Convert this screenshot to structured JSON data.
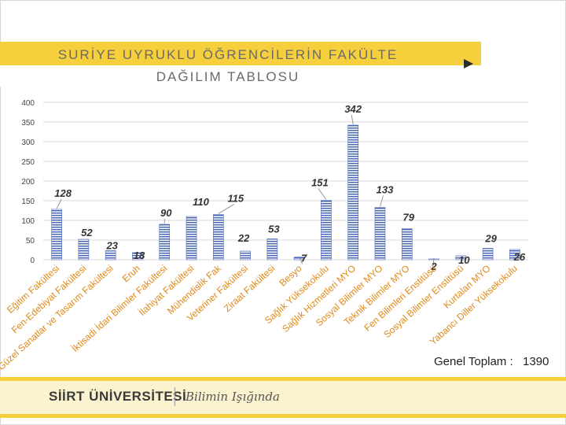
{
  "title": {
    "line1": "SURİYE UYRUKLU ÖĞRENCİLERİN FAKÜLTE",
    "line2": "DAĞILIM TABLOSU"
  },
  "footer": {
    "university": "SİİRT ÜNİVERSİTESİ",
    "slogan": "Bilimin Işığında",
    "total_label": "Genel Toplam :",
    "total_value": "1390"
  },
  "icons": {
    "arrow": "play-arrow-icon"
  },
  "colors": {
    "banner": "#f6cf3d",
    "bar": "#4a67b5",
    "title_text": "#6a6a6a"
  },
  "chart_data": {
    "type": "bar",
    "ylim": [
      0,
      400
    ],
    "yticks": [
      0,
      50,
      100,
      150,
      200,
      250,
      300,
      350,
      400
    ],
    "grid": true,
    "categories": [
      "Eğitim Fakültesi",
      "Fen-Edebiyat Fakültesi",
      "Güzel Sanatlar ve Tasarım Fakültesi",
      "Eruh",
      "İktisadi İdari Bilimler Fakültesi",
      "İlahiyat Fakültesi",
      "Mühendislik Fak",
      "Veteriner Fakültesi",
      "Ziraat Fakültesi",
      "Besyo",
      "Sağlık Yüksekokulu",
      "Sağlık Hizmetleri MYO",
      "Sosyal Bilimler MYO",
      "Teknik Bilimler MYO",
      "Fen Bilimleri Enstitüsü",
      "Sosyal Bilimler Enstitüsü",
      "Kurtalan MYO",
      "Yabancı Diller Yüksekokulu"
    ],
    "values": [
      128,
      52,
      23,
      18,
      90,
      110,
      115,
      22,
      53,
      7,
      151,
      342,
      133,
      79,
      2,
      10,
      29,
      26
    ]
  }
}
